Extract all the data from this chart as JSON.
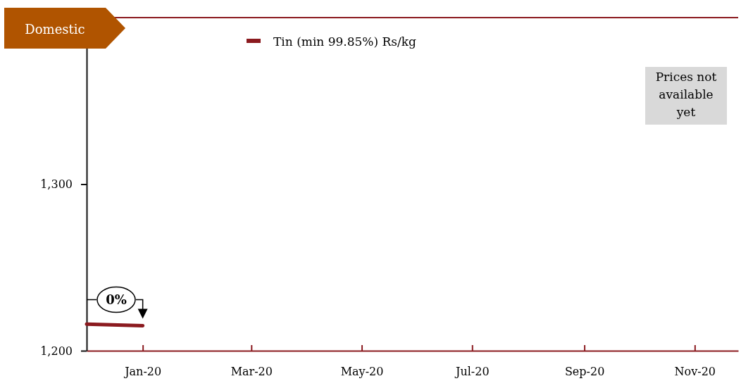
{
  "chart_data": {
    "type": "line",
    "title": "Domestic",
    "x": [
      "2019-12-01",
      "2020-01-01"
    ],
    "series": [
      {
        "name": "Tin (min 99.85%) Rs/kg",
        "color": "#8b1a1f",
        "values": [
          1216,
          1215
        ]
      }
    ],
    "xlim": [
      "2019-12-01",
      "2020-11-25"
    ],
    "xticks": [
      {
        "value": "2020-01-01",
        "label": "Jan-20"
      },
      {
        "value": "2020-03-01",
        "label": "Mar-20"
      },
      {
        "value": "2020-05-01",
        "label": "May-20"
      },
      {
        "value": "2020-07-01",
        "label": "Jul-20"
      },
      {
        "value": "2020-09-01",
        "label": "Sep-20"
      },
      {
        "value": "2020-11-01",
        "label": "Nov-20"
      }
    ],
    "ylim": [
      1200,
      1400
    ],
    "yticks": [
      {
        "value": 1200,
        "label": "1,200"
      },
      {
        "value": 1300,
        "label": "1,300"
      }
    ],
    "legend": "top",
    "grid": false,
    "annotations": [
      {
        "text": "0%",
        "x": "2020-01-01",
        "y": 1215
      },
      "Prices not available yet"
    ]
  }
}
